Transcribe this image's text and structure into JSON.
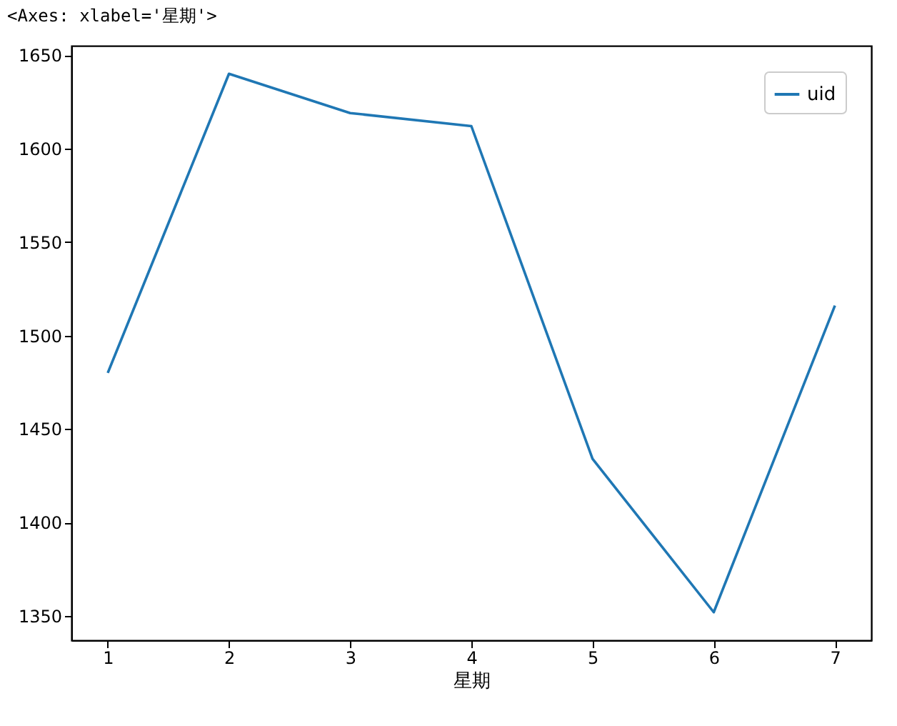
{
  "chart_data": {
    "type": "line",
    "annotations": [
      "<Axes: xlabel='星期'>"
    ],
    "xlabel": "星期",
    "x": [
      1,
      2,
      3,
      4,
      5,
      6,
      7
    ],
    "series": [
      {
        "name": "uid",
        "color": "#1f77b4",
        "values": [
          1480,
          1640,
          1619,
          1612,
          1434,
          1352,
          1516
        ]
      }
    ],
    "xlim": [
      0.7,
      7.3
    ],
    "xticks": [
      1,
      2,
      3,
      4,
      5,
      6,
      7
    ],
    "ylim": [
      1337,
      1655
    ],
    "yticks": [
      1350,
      1400,
      1450,
      1500,
      1550,
      1600,
      1650
    ],
    "grid": false,
    "legend": "top right",
    "marker": "none",
    "line_style": "solid"
  }
}
